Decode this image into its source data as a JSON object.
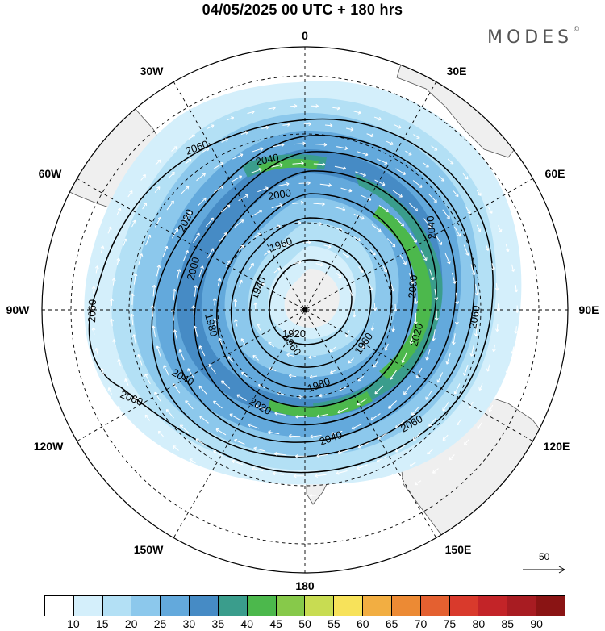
{
  "title": "04/05/2025  00 UTC  + 180 hrs",
  "brand": {
    "name": "MODES",
    "mark": "©"
  },
  "map": {
    "projection": "south polar stereographic",
    "pole": "South Pole",
    "meridian_labels": [
      "0",
      "30E",
      "60E",
      "90E",
      "120E",
      "150E",
      "180",
      "150W",
      "120W",
      "90W",
      "60W",
      "30W"
    ],
    "contour_labels": [
      "1920",
      "1940",
      "1960",
      "1980",
      "2000",
      "2020",
      "2040",
      "2060"
    ],
    "colors": {
      "land": "#efefef",
      "coast": "#555555",
      "contour": "#000000",
      "vector": "#ffffff",
      "grid": "#000000"
    }
  },
  "colorbar": {
    "ticks": [
      "10",
      "15",
      "20",
      "25",
      "30",
      "35",
      "40",
      "45",
      "50",
      "55",
      "60",
      "65",
      "70",
      "75",
      "80",
      "85",
      "90"
    ],
    "colors": [
      "#ffffff",
      "#d4effb",
      "#b3e0f5",
      "#8cc8ec",
      "#63a9dc",
      "#468bc5",
      "#3a9d8c",
      "#4cb84c",
      "#87c94a",
      "#c8dc52",
      "#f7e25a",
      "#f2ae42",
      "#ec8a34",
      "#e46030",
      "#d93a2c",
      "#c32428",
      "#a81c22",
      "#8a1414"
    ]
  },
  "reference_vector": {
    "label": "50"
  }
}
